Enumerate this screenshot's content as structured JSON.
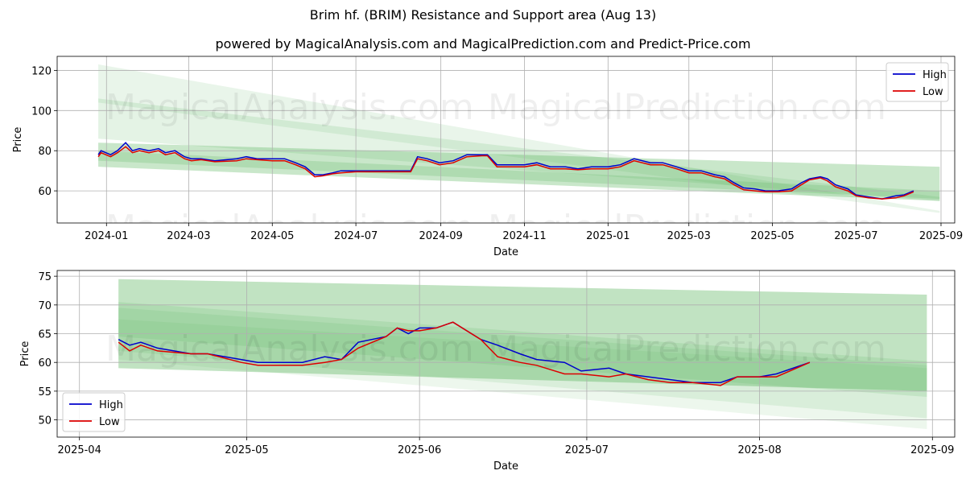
{
  "title": "Brim hf. (BRIM) Resistance and Support area (Aug 13)",
  "subtitle": "powered by MagicalAnalysis.com and MagicalPrediction.com and Predict-Price.com",
  "watermarks": [
    "MagicalAnalysis.com",
    "MagicalPrediction.com"
  ],
  "colors": {
    "high": "#0000cc",
    "low": "#dd0000",
    "band": "#4caf50"
  },
  "chart_data": [
    {
      "type": "line",
      "xlabel": "Date",
      "ylabel": "Price",
      "xlim": [
        "2023-11-26",
        "2025-09-11"
      ],
      "ylim": [
        44,
        127
      ],
      "xticks": [
        "2024-01",
        "2024-03",
        "2024-05",
        "2024-07",
        "2024-09",
        "2024-11",
        "2025-01",
        "2025-03",
        "2025-05",
        "2025-07",
        "2025-09"
      ],
      "yticks": [
        60,
        80,
        100,
        120
      ],
      "grid": true,
      "legend": "top-right",
      "bands": [
        {
          "x": [
            "2023-12-26",
            "2025-08-31"
          ],
          "upper": [
            123,
            50
          ],
          "lower": [
            104,
            49
          ],
          "alpha": 0.12
        },
        {
          "x": [
            "2023-12-26",
            "2025-08-31"
          ],
          "upper": [
            106,
            57
          ],
          "lower": [
            86,
            55
          ],
          "alpha": 0.15
        },
        {
          "x": [
            "2023-12-26",
            "2025-08-31"
          ],
          "upper": [
            84,
            72
          ],
          "lower": [
            72,
            55
          ],
          "alpha": 0.3
        },
        {
          "x": [
            "2023-12-26",
            "2025-08-31"
          ],
          "upper": [
            80,
            60
          ],
          "lower": [
            75,
            56
          ],
          "alpha": 0.2
        }
      ],
      "series": [
        {
          "name": "High",
          "x": [
            "2023-12-26",
            "2023-12-28",
            "2024-01-04",
            "2024-01-09",
            "2024-01-15",
            "2024-01-20",
            "2024-01-25",
            "2024-02-01",
            "2024-02-08",
            "2024-02-13",
            "2024-02-20",
            "2024-02-27",
            "2024-03-03",
            "2024-03-10",
            "2024-03-20",
            "2024-04-05",
            "2024-04-12",
            "2024-04-20",
            "2024-05-01",
            "2024-05-10",
            "2024-05-18",
            "2024-05-25",
            "2024-06-01",
            "2024-06-07",
            "2024-06-14",
            "2024-06-20",
            "2024-07-01",
            "2024-07-10",
            "2024-07-20",
            "2024-08-01",
            "2024-08-10",
            "2024-08-15",
            "2024-08-22",
            "2024-08-31",
            "2024-09-10",
            "2024-09-20",
            "2024-10-01",
            "2024-10-05",
            "2024-10-12",
            "2024-10-20",
            "2024-11-01",
            "2024-11-10",
            "2024-11-20",
            "2024-12-01",
            "2024-12-10",
            "2024-12-20",
            "2025-01-01",
            "2025-01-10",
            "2025-01-20",
            "2025-02-01",
            "2025-02-10",
            "2025-02-20",
            "2025-03-01",
            "2025-03-10",
            "2025-03-20",
            "2025-03-27",
            "2025-04-03",
            "2025-04-10",
            "2025-04-18",
            "2025-04-26",
            "2025-05-05",
            "2025-05-15",
            "2025-05-22",
            "2025-05-28",
            "2025-06-05",
            "2025-06-10",
            "2025-06-16",
            "2025-06-25",
            "2025-07-01",
            "2025-07-10",
            "2025-07-20",
            "2025-07-30",
            "2025-08-05",
            "2025-08-12"
          ],
          "values": [
            78,
            80,
            78,
            80,
            84,
            80,
            81,
            80,
            81,
            79,
            80,
            77,
            76,
            76,
            75,
            76,
            77,
            76,
            76,
            76,
            74,
            72,
            68,
            68,
            69,
            70,
            70,
            70,
            70,
            70,
            70,
            77,
            76,
            74,
            75,
            78,
            78,
            78,
            73,
            73,
            73,
            74,
            72,
            72,
            71,
            72,
            72,
            73,
            76,
            74,
            74,
            72,
            70,
            70,
            68,
            67,
            64,
            61.5,
            61,
            60,
            60,
            61,
            64,
            66,
            67,
            66,
            63,
            61,
            58,
            57,
            56,
            57.5,
            58,
            60
          ]
        },
        {
          "name": "Low",
          "x": [
            "2023-12-26",
            "2023-12-28",
            "2024-01-04",
            "2024-01-09",
            "2024-01-15",
            "2024-01-20",
            "2024-01-25",
            "2024-02-01",
            "2024-02-08",
            "2024-02-13",
            "2024-02-20",
            "2024-02-27",
            "2024-03-03",
            "2024-03-10",
            "2024-03-20",
            "2024-04-05",
            "2024-04-12",
            "2024-04-20",
            "2024-05-01",
            "2024-05-10",
            "2024-05-18",
            "2024-05-25",
            "2024-06-01",
            "2024-06-07",
            "2024-06-14",
            "2024-06-20",
            "2024-07-01",
            "2024-07-10",
            "2024-07-20",
            "2024-08-01",
            "2024-08-10",
            "2024-08-15",
            "2024-08-22",
            "2024-08-31",
            "2024-09-10",
            "2024-09-20",
            "2024-10-01",
            "2024-10-05",
            "2024-10-12",
            "2024-10-20",
            "2024-11-01",
            "2024-11-10",
            "2024-11-20",
            "2024-12-01",
            "2024-12-10",
            "2024-12-20",
            "2025-01-01",
            "2025-01-10",
            "2025-01-20",
            "2025-02-01",
            "2025-02-10",
            "2025-02-20",
            "2025-03-01",
            "2025-03-10",
            "2025-03-20",
            "2025-03-27",
            "2025-04-03",
            "2025-04-10",
            "2025-04-18",
            "2025-04-26",
            "2025-05-05",
            "2025-05-15",
            "2025-05-22",
            "2025-05-28",
            "2025-06-05",
            "2025-06-10",
            "2025-06-16",
            "2025-06-25",
            "2025-07-01",
            "2025-07-10",
            "2025-07-20",
            "2025-07-30",
            "2025-08-05",
            "2025-08-12"
          ],
          "values": [
            77,
            79,
            77,
            79,
            82,
            79,
            80,
            79,
            80,
            78,
            79,
            76,
            75,
            75.5,
            74.5,
            75,
            76,
            75.5,
            75,
            75,
            73,
            71,
            67,
            67.5,
            68.5,
            69,
            69.5,
            69.5,
            69.5,
            69.5,
            69.5,
            76,
            75,
            73,
            74,
            77,
            77.5,
            77.5,
            72,
            72,
            72,
            73,
            71,
            71,
            70.5,
            71,
            71,
            72,
            75,
            73,
            73,
            71,
            69,
            69,
            67,
            66,
            63,
            60.5,
            60,
            59.5,
            59.5,
            60,
            63,
            65.5,
            66.5,
            65,
            62,
            60,
            57.5,
            56.5,
            56,
            56.5,
            57.5,
            59.5
          ]
        }
      ]
    },
    {
      "type": "line",
      "xlabel": "Date",
      "ylabel": "Price",
      "xlim": [
        "2025-03-28",
        "2025-09-05"
      ],
      "ylim": [
        47,
        76
      ],
      "xticks": [
        "2025-04",
        "2025-05",
        "2025-06",
        "2025-07",
        "2025-08",
        "2025-09"
      ],
      "yticks": [
        50,
        55,
        60,
        65,
        70,
        75
      ],
      "grid": true,
      "legend": "bottom-left",
      "bands": [
        {
          "x": [
            "2025-04-08",
            "2025-08-31"
          ],
          "upper": [
            74.5,
            71.8
          ],
          "lower": [
            59,
            55
          ],
          "alpha": 0.35
        },
        {
          "x": [
            "2025-04-08",
            "2025-08-31"
          ],
          "upper": [
            70.5,
            60.2
          ],
          "lower": [
            64.5,
            54
          ],
          "alpha": 0.15
        },
        {
          "x": [
            "2025-04-08",
            "2025-08-31"
          ],
          "upper": [
            69.5,
            59.5
          ],
          "lower": [
            62,
            50.3
          ],
          "alpha": 0.12
        },
        {
          "x": [
            "2025-04-08",
            "2025-08-31"
          ],
          "upper": [
            67.5,
            59
          ],
          "lower": [
            60.5,
            48.4
          ],
          "alpha": 0.1
        }
      ],
      "series": [
        {
          "name": "High",
          "x": [
            "2025-04-08",
            "2025-04-10",
            "2025-04-12",
            "2025-04-15",
            "2025-04-21",
            "2025-04-24",
            "2025-04-30",
            "2025-05-03",
            "2025-05-08",
            "2025-05-11",
            "2025-05-15",
            "2025-05-18",
            "2025-05-21",
            "2025-05-26",
            "2025-05-28",
            "2025-05-30",
            "2025-06-01",
            "2025-06-04",
            "2025-06-07",
            "2025-06-12",
            "2025-06-15",
            "2025-06-19",
            "2025-06-22",
            "2025-06-27",
            "2025-06-30",
            "2025-07-05",
            "2025-07-08",
            "2025-07-12",
            "2025-07-16",
            "2025-07-20",
            "2025-07-25",
            "2025-07-28",
            "2025-08-01",
            "2025-08-04",
            "2025-08-10"
          ],
          "values": [
            64,
            63,
            63.5,
            62.5,
            61.5,
            61.5,
            60.5,
            60,
            60,
            60,
            61,
            60.5,
            63.5,
            64.5,
            66,
            65,
            66,
            66,
            67,
            64,
            63,
            61.5,
            60.5,
            60,
            58.5,
            59,
            58,
            57.5,
            57,
            56.5,
            56.5,
            57.5,
            57.5,
            58,
            60
          ]
        },
        {
          "name": "Low",
          "x": [
            "2025-04-08",
            "2025-04-10",
            "2025-04-12",
            "2025-04-15",
            "2025-04-21",
            "2025-04-24",
            "2025-04-30",
            "2025-05-03",
            "2025-05-08",
            "2025-05-11",
            "2025-05-15",
            "2025-05-18",
            "2025-05-21",
            "2025-05-26",
            "2025-05-28",
            "2025-05-30",
            "2025-06-01",
            "2025-06-04",
            "2025-06-07",
            "2025-06-12",
            "2025-06-15",
            "2025-06-19",
            "2025-06-22",
            "2025-06-27",
            "2025-06-30",
            "2025-07-05",
            "2025-07-08",
            "2025-07-12",
            "2025-07-16",
            "2025-07-20",
            "2025-07-25",
            "2025-07-28",
            "2025-08-01",
            "2025-08-04",
            "2025-08-10"
          ],
          "values": [
            63.5,
            62,
            63,
            62,
            61.5,
            61.5,
            60,
            59.5,
            59.5,
            59.5,
            60,
            60.5,
            62.5,
            64.5,
            66,
            65.5,
            65.5,
            66,
            67,
            64,
            61,
            60,
            59.5,
            58,
            58,
            57.5,
            58,
            57,
            56.5,
            56.5,
            56,
            57.5,
            57.5,
            57.5,
            60
          ]
        }
      ]
    }
  ]
}
